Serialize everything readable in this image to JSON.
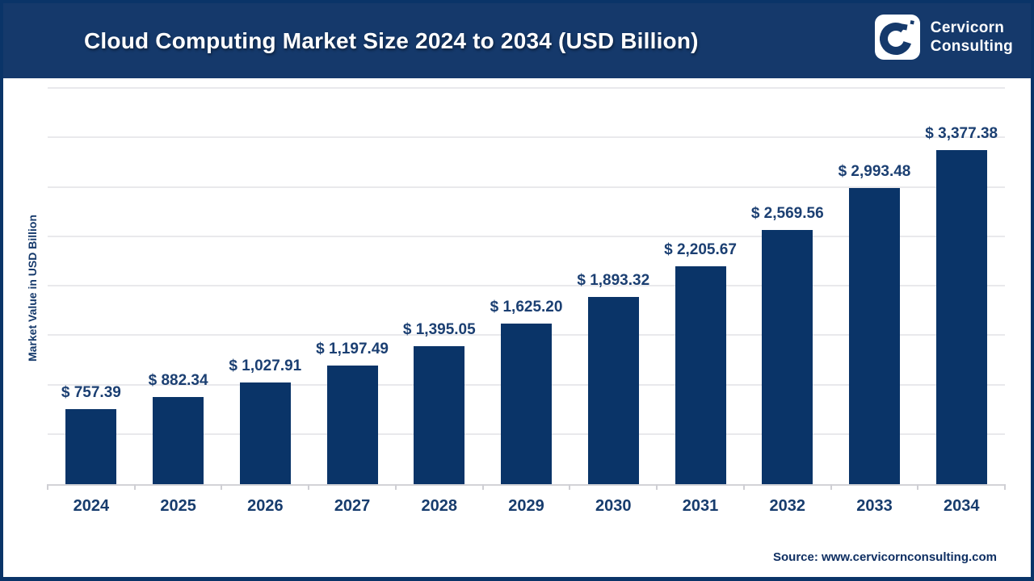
{
  "header": {
    "title": "Cloud Computing Market Size 2024 to 2034 (USD Billion)",
    "logo": {
      "line1": "Cervicorn",
      "line2": "Consulting"
    }
  },
  "chart_data": {
    "type": "bar",
    "title": "Cloud Computing Market Size 2024 to 2034 (USD Billion)",
    "categories": [
      "2024",
      "2025",
      "2026",
      "2027",
      "2028",
      "2029",
      "2030",
      "2031",
      "2032",
      "2033",
      "2034"
    ],
    "values": [
      757.39,
      882.34,
      1027.91,
      1197.49,
      1395.05,
      1625.2,
      1893.32,
      2205.67,
      2569.56,
      2993.48,
      3377.38
    ],
    "value_labels": [
      "$ 757.39",
      "$ 882.34",
      "$ 1,027.91",
      "$ 1,197.49",
      "$ 1,395.05",
      "$ 1,625.20",
      "$ 1,893.32",
      "$ 2,205.67",
      "$ 2,569.56",
      "$ 2,993.48",
      "$ 3,377.38"
    ],
    "xlabel": "",
    "ylabel": "Market Value in USD Billion",
    "ylim": [
      0,
      4000
    ],
    "grid_step": 500,
    "grid": true,
    "legend": false,
    "bar_color": "#0a3468"
  },
  "footer": {
    "source": "Source: www.cervicornconsulting.com"
  },
  "colors": {
    "header_bg": "#15396b",
    "border": "#0a3468",
    "bar": "#0a3468",
    "label_text": "#1b3f72",
    "gridline": "#e9e9ec"
  }
}
